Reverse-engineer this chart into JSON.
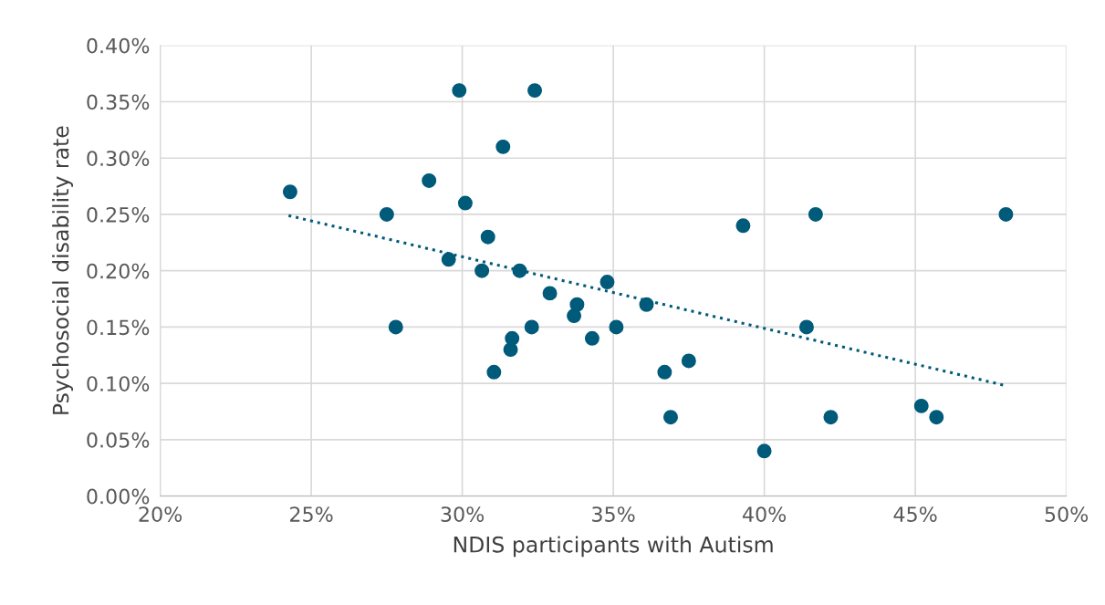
{
  "chart_data": {
    "type": "scatter",
    "xlabel": "NDIS participants with Autism",
    "ylabel": "Psychosocial disability rate",
    "series": [
      {
        "color": "#005a7a",
        "marker": "circle",
        "x": [
          24.3,
          27.5,
          27.8,
          28.9,
          29.55,
          29.9,
          30.1,
          30.65,
          30.85,
          31.05,
          31.35,
          31.6,
          31.65,
          31.9,
          32.3,
          32.4,
          32.9,
          33.7,
          33.8,
          34.3,
          34.8,
          35.1,
          36.1,
          36.7,
          36.9,
          37.5,
          39.3,
          40.0,
          41.4,
          41.7,
          42.2,
          45.2,
          45.7,
          48.0
        ],
        "values": [
          0.27,
          0.25,
          0.15,
          0.28,
          0.21,
          0.36,
          0.26,
          0.2,
          0.23,
          0.11,
          0.31,
          0.13,
          0.14,
          0.2,
          0.15,
          0.36,
          0.18,
          0.16,
          0.17,
          0.14,
          0.19,
          0.15,
          0.17,
          0.11,
          0.07,
          0.12,
          0.24,
          0.04,
          0.15,
          0.25,
          0.07,
          0.08,
          0.07,
          0.25
        ]
      },
      {
        "type": "line",
        "color": "#005a7a",
        "line_style": "dotted",
        "marker": "none",
        "x": [
          24.25,
          48.0
        ],
        "values": [
          0.249,
          0.098
        ]
      }
    ],
    "xlim": [
      20,
      50
    ],
    "xticks": [
      {
        "value": 20,
        "label": "20%"
      },
      {
        "value": 25,
        "label": "25%"
      },
      {
        "value": 30,
        "label": "30%"
      },
      {
        "value": 35,
        "label": "35%"
      },
      {
        "value": 40,
        "label": "40%"
      },
      {
        "value": 45,
        "label": "45%"
      },
      {
        "value": 50,
        "label": "50%"
      }
    ],
    "ylim": [
      0,
      0.4
    ],
    "yticks": [
      {
        "value": 0,
        "label": "0.00%"
      },
      {
        "value": 0.05,
        "label": "0.05%"
      },
      {
        "value": 0.1,
        "label": "0.10%"
      },
      {
        "value": 0.15,
        "label": "0.15%"
      },
      {
        "value": 0.2,
        "label": "0.20%"
      },
      {
        "value": 0.25,
        "label": "0.25%"
      },
      {
        "value": 0.3,
        "label": "0.30%"
      },
      {
        "value": 0.35,
        "label": "0.35%"
      },
      {
        "value": 0.4,
        "label": "0.40%"
      }
    ],
    "grid": true
  }
}
